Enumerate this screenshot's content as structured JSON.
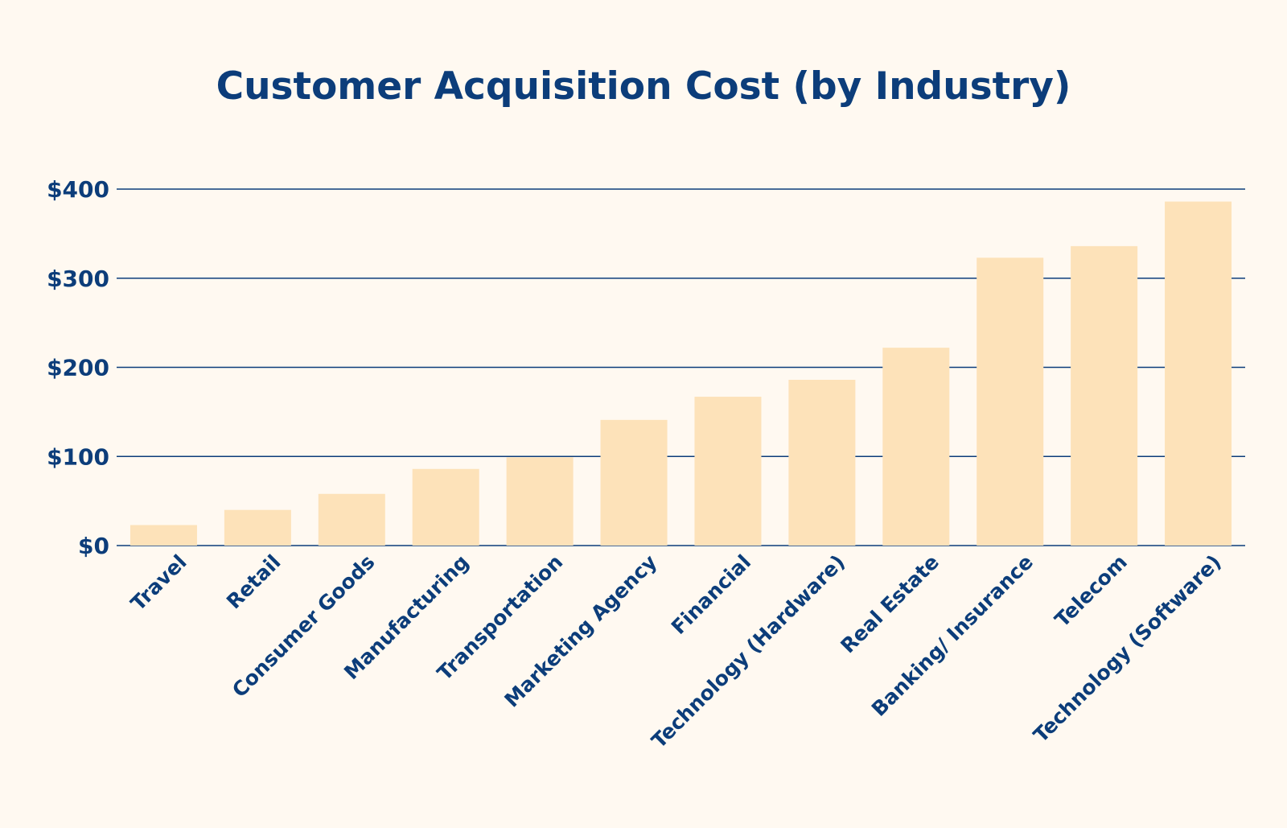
{
  "colors": {
    "background": "#fff9f1",
    "text": "#0c3d7a",
    "bar": "#fde2b9",
    "grid": "#0c3d7a"
  },
  "chart_data": {
    "type": "bar",
    "title": "Customer Acquisition Cost (by Industry)",
    "xlabel": "",
    "ylabel": "",
    "categories": [
      "Travel",
      "Retail",
      "Consumer Goods",
      "Manufacturing",
      "Transportation",
      "Marketing Agency",
      "Financial",
      "Technology (Hardware)",
      "Real Estate",
      "Banking/ Insurance",
      "Telecom",
      "Technology (Software)"
    ],
    "values": [
      23,
      40,
      58,
      86,
      99,
      141,
      167,
      186,
      222,
      323,
      336,
      386
    ],
    "ylim": [
      0,
      400
    ],
    "yticks": [
      0,
      100,
      200,
      300,
      400
    ],
    "ytick_labels": [
      "$0",
      "$100",
      "$200",
      "$300",
      "$400"
    ],
    "grid": true,
    "legend": "none"
  }
}
